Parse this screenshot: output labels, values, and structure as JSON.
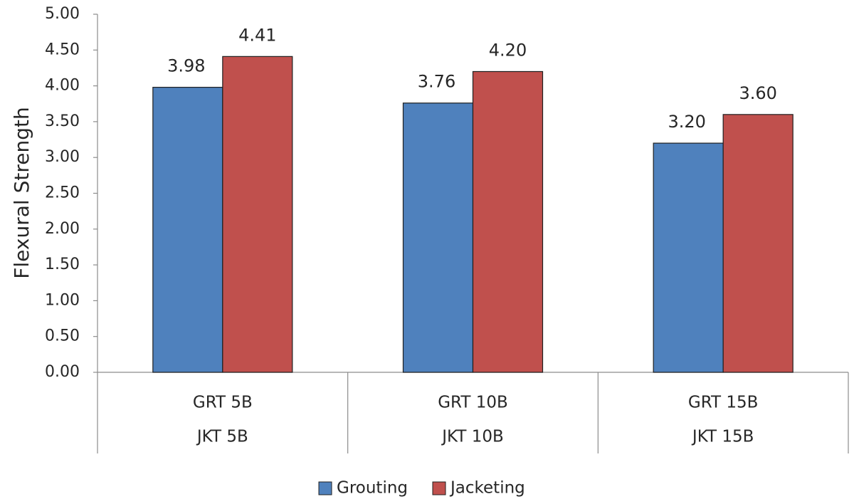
{
  "chart_data": {
    "type": "bar",
    "title": "",
    "xlabel": "",
    "ylabel": "Flexural Strength",
    "ylim": [
      0,
      5
    ],
    "ytick_step": 0.5,
    "ytick_labels": [
      "0.00",
      "0.50",
      "1.00",
      "1.50",
      "2.00",
      "2.50",
      "3.00",
      "3.50",
      "4.00",
      "4.50",
      "5.00"
    ],
    "grid": false,
    "categories": [
      [
        "GRT 5B",
        "JKT 5B"
      ],
      [
        "GRT 10B",
        "JKT 10B"
      ],
      [
        "GRT 15B",
        "JKT 15B"
      ]
    ],
    "series": [
      {
        "name": "Grouting",
        "color": "#4f81bd",
        "values": [
          3.98,
          3.76,
          3.2
        ],
        "labels": [
          "3.98",
          "3.76",
          "3.20"
        ]
      },
      {
        "name": "Jacketing",
        "color": "#c0504d",
        "values": [
          4.41,
          4.2,
          3.6
        ],
        "labels": [
          "4.41",
          "4.20",
          "3.60"
        ]
      }
    ],
    "legend_position": "bottom-center"
  }
}
